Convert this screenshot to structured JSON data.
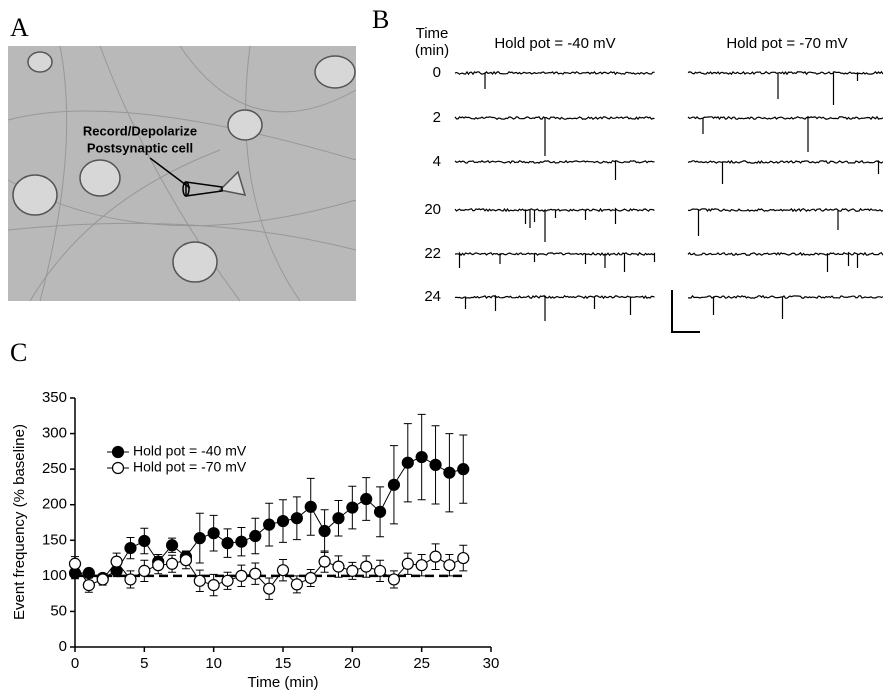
{
  "panels": {
    "a": {
      "label": "A",
      "annotation": [
        "Record/Depolarize",
        "Postsynaptic cell"
      ]
    },
    "b": {
      "label": "B",
      "time_header": [
        "Time",
        "(min)"
      ],
      "columns": [
        "Hold pot = -40 mV",
        "Hold pot = -70 mV"
      ],
      "times": [
        "0",
        "2",
        "4",
        "20",
        "22",
        "24"
      ]
    },
    "c": {
      "label": "C"
    }
  },
  "chart_data": {
    "type": "line",
    "xlabel": "Time (min)",
    "ylabel": "Event frequency (% baseline)",
    "x": [
      0,
      1,
      2,
      3,
      4,
      5,
      6,
      7,
      8,
      9,
      10,
      11,
      12,
      13,
      14,
      15,
      16,
      17,
      18,
      19,
      20,
      21,
      22,
      23,
      24,
      25,
      26,
      27,
      28
    ],
    "series": [
      {
        "name": "Hold pot = -40 mV",
        "color": "#000000",
        "marker_fill": "#000000",
        "values": [
          104,
          104,
          97,
          107,
          139,
          149,
          120,
          143,
          127,
          153,
          160,
          146,
          148,
          156,
          172,
          177,
          181,
          197,
          163,
          181,
          196,
          208,
          190,
          228,
          259,
          267,
          256,
          245,
          250
        ],
        "errors": [
          8,
          5,
          5,
          8,
          15,
          18,
          10,
          10,
          8,
          35,
          25,
          20,
          20,
          25,
          30,
          30,
          30,
          40,
          30,
          25,
          30,
          30,
          35,
          55,
          55,
          60,
          55,
          55,
          48
        ]
      },
      {
        "name": "Hold pot = -70 mV",
        "color": "#000000",
        "marker_fill": "#ffffff",
        "values": [
          117,
          87,
          95,
          120,
          95,
          107,
          115,
          117,
          122,
          93,
          87,
          93,
          100,
          103,
          82,
          108,
          88,
          97,
          120,
          113,
          107,
          113,
          107,
          95,
          117,
          115,
          127,
          115,
          125
        ],
        "errors": [
          10,
          10,
          8,
          12,
          12,
          15,
          12,
          12,
          12,
          15,
          15,
          12,
          15,
          15,
          15,
          15,
          12,
          12,
          15,
          15,
          12,
          15,
          15,
          12,
          15,
          15,
          18,
          15,
          18
        ]
      }
    ],
    "hline": 100,
    "xlim": [
      0,
      30
    ],
    "xticks": [
      0,
      5,
      10,
      15,
      20,
      25,
      30
    ],
    "ylim": [
      0,
      350
    ],
    "yticks": [
      0,
      50,
      100,
      150,
      200,
      250,
      300,
      350
    ],
    "legend": "upper left"
  }
}
